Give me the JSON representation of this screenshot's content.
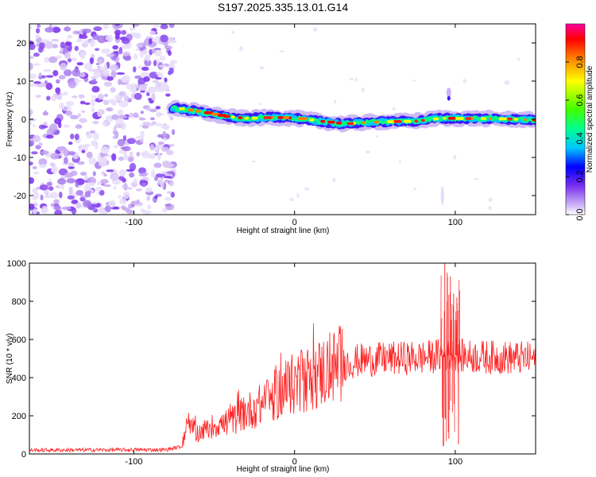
{
  "title": "S197.2025.335.13.01.G14",
  "chart_data": [
    {
      "type": "heatmap",
      "xlabel": "Height of straight line (km)",
      "ylabel": "Frequency (Hz)",
      "xlim": [
        -165,
        150
      ],
      "ylim": [
        -25,
        25
      ],
      "xticks": [
        -100,
        0,
        100
      ],
      "yticks": [
        20,
        10,
        0,
        -10,
        -20
      ],
      "xtick_labels": [
        "-100",
        "0",
        "100"
      ],
      "ytick_labels": [
        "20",
        "10",
        "0",
        "-10",
        "-20"
      ],
      "noise_region_x": [
        -165,
        -75
      ],
      "signal_start_x": -76,
      "signal_track": [
        {
          "x": -76,
          "y": 3.0
        },
        {
          "x": -60,
          "y": 2.0
        },
        {
          "x": -45,
          "y": 0.8
        },
        {
          "x": -30,
          "y": 0.2
        },
        {
          "x": -15,
          "y": 0.5
        },
        {
          "x": 0,
          "y": 0.3
        },
        {
          "x": 15,
          "y": -0.5
        },
        {
          "x": 30,
          "y": -1.2
        },
        {
          "x": 45,
          "y": -0.8
        },
        {
          "x": 60,
          "y": -0.6
        },
        {
          "x": 75,
          "y": -0.5
        },
        {
          "x": 90,
          "y": 0.3
        },
        {
          "x": 100,
          "y": 0.2
        },
        {
          "x": 115,
          "y": 0.2
        },
        {
          "x": 130,
          "y": 0.1
        },
        {
          "x": 148,
          "y": -0.2
        }
      ],
      "colorbar": {
        "label": "Normalized spectral amplitude",
        "range": [
          0,
          1
        ],
        "ticks": [
          "0.0",
          "0.2",
          "0.4",
          "0.6",
          "0.8"
        ],
        "tick_values": [
          0.0,
          0.2,
          0.4,
          0.6,
          0.8
        ]
      }
    },
    {
      "type": "line",
      "xlabel": "Height of straight line (km)",
      "ylabel": "SNR (10 * v/v)",
      "xlim": [
        -165,
        150
      ],
      "ylim": [
        0,
        1000
      ],
      "xticks": [
        -100,
        0,
        100
      ],
      "yticks": [
        0,
        200,
        400,
        600,
        800,
        1000
      ],
      "xtick_labels": [
        "-100",
        "0",
        "100"
      ],
      "ytick_labels": [
        "0",
        "200",
        "400",
        "600",
        "800",
        "1000"
      ],
      "color": "#ff2020",
      "series": [
        {
          "name": "SNR",
          "envelope": [
            {
              "x": -165,
              "y": 20
            },
            {
              "x": -80,
              "y": 22
            },
            {
              "x": -70,
              "y": 40
            },
            {
              "x": -67,
              "y": 140
            },
            {
              "x": -60,
              "y": 110
            },
            {
              "x": -50,
              "y": 150
            },
            {
              "x": -40,
              "y": 170
            },
            {
              "x": -30,
              "y": 220
            },
            {
              "x": -20,
              "y": 260
            },
            {
              "x": -10,
              "y": 320
            },
            {
              "x": 0,
              "y": 370
            },
            {
              "x": 10,
              "y": 400
            },
            {
              "x": 20,
              "y": 440
            },
            {
              "x": 30,
              "y": 470
            },
            {
              "x": 40,
              "y": 490
            },
            {
              "x": 60,
              "y": 500
            },
            {
              "x": 80,
              "y": 505
            },
            {
              "x": 95,
              "y": 520
            },
            {
              "x": 110,
              "y": 510
            },
            {
              "x": 130,
              "y": 505
            },
            {
              "x": 150,
              "y": 500
            }
          ],
          "spikes": [
            {
              "x": 93.5,
              "y": 1000
            },
            {
              "x": 95,
              "y": 950
            },
            {
              "x": 97,
              "y": 930
            },
            {
              "x": 99,
              "y": 840
            },
            {
              "x": 101,
              "y": 820
            },
            {
              "x": 92.5,
              "y": 40
            },
            {
              "x": 96,
              "y": 80
            },
            {
              "x": 102,
              "y": 50
            }
          ]
        }
      ]
    }
  ]
}
